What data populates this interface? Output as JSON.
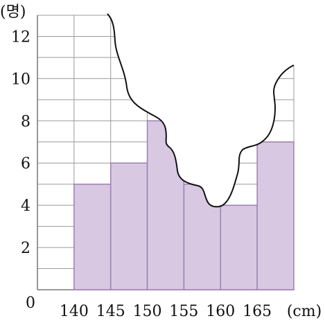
{
  "chart_data": {
    "type": "bar",
    "y_unit_label": "(명)",
    "x_unit_label": "(cm)",
    "origin_label": "0",
    "x_ticks": [
      "140",
      "145",
      "150",
      "155",
      "160",
      "165"
    ],
    "y_ticks": [
      "2",
      "4",
      "6",
      "8",
      "10",
      "12"
    ],
    "bins": [
      {
        "from": 140,
        "to": 145,
        "value": 5
      },
      {
        "from": 145,
        "to": 150,
        "value": 6
      },
      {
        "from": 150,
        "to": 155,
        "value": 8
      },
      {
        "from": 155,
        "to": 160,
        "value": 5
      },
      {
        "from": 160,
        "to": 165,
        "value": 4
      },
      {
        "from": 165,
        "to": 170,
        "value": 7
      }
    ],
    "xlim": [
      135,
      170
    ],
    "ylim": [
      0,
      13
    ],
    "grid": true,
    "grid_step_y": 1,
    "grid_step_x": 5,
    "colors": {
      "bar_fill": "#d9c8e2",
      "bar_stroke": "#9b80b3",
      "grid": "#999999",
      "text": "#111111"
    },
    "torn_edge_note": "The top-right portion of the chart is torn away (covered)."
  }
}
